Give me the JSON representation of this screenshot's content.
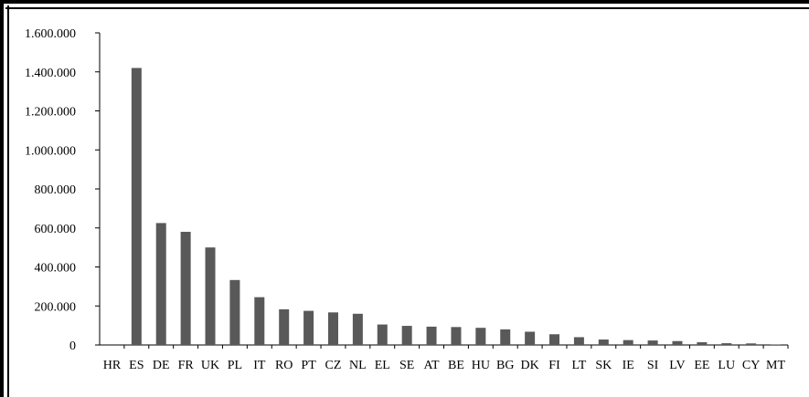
{
  "chart_data": {
    "type": "bar",
    "title": "",
    "xlabel": "",
    "ylabel": "",
    "ylim": [
      0,
      1600000
    ],
    "y_ticks": [
      0,
      200000,
      400000,
      600000,
      800000,
      1000000,
      1200000,
      1400000,
      1600000
    ],
    "y_tick_labels": [
      "0",
      "200.000",
      "400.000",
      "600.000",
      "800.000",
      "1.000.000",
      "1.200.000",
      "1.400.000",
      "1.600.000"
    ],
    "categories": [
      "HR",
      "ES",
      "DE",
      "FR",
      "UK",
      "PL",
      "IT",
      "RO",
      "PT",
      "CZ",
      "NL",
      "EL",
      "SE",
      "AT",
      "BE",
      "HU",
      "BG",
      "DK",
      "FI",
      "LT",
      "SK",
      "IE",
      "SI",
      "LV",
      "EE",
      "LU",
      "CY",
      "MT"
    ],
    "values": [
      0,
      1420000,
      625000,
      580000,
      500000,
      333000,
      245000,
      183000,
      175000,
      167000,
      160000,
      105000,
      98000,
      94000,
      92000,
      88000,
      80000,
      68000,
      55000,
      40000,
      28000,
      25000,
      23000,
      20000,
      14000,
      9000,
      8000,
      1500
    ],
    "bar_color": "#595959",
    "grid": false,
    "legend": "none"
  }
}
